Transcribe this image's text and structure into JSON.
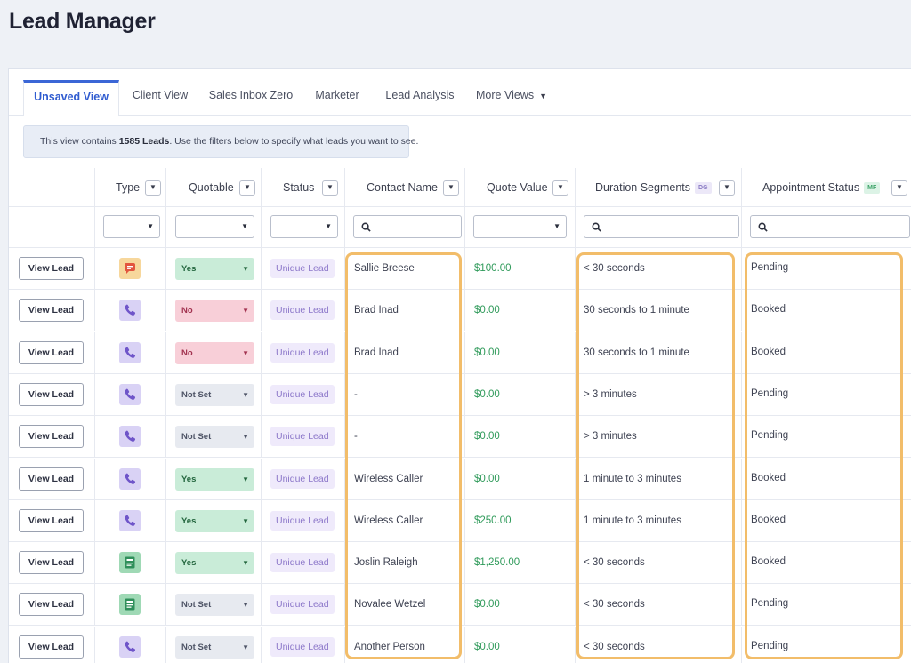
{
  "page_title": "Lead Manager",
  "tabs": [
    {
      "label": "Unsaved View",
      "active": true
    },
    {
      "label": "Client View",
      "active": false
    },
    {
      "label": "Sales Inbox Zero",
      "active": false
    },
    {
      "label": "Marketer",
      "active": false
    },
    {
      "label": "Lead Analysis",
      "active": false
    },
    {
      "label": "More Views",
      "active": false
    }
  ],
  "info": {
    "prefix": "This view contains ",
    "count": "1585 Leads",
    "suffix": ". Use the filters below to specify what leads you want to see."
  },
  "columns": {
    "type": "Type",
    "quotable": "Quotable",
    "status": "Status",
    "contact_name": "Contact Name",
    "quote_value": "Quote Value",
    "duration": "Duration Segments",
    "duration_tag": "DG",
    "appointment": "Appointment Status",
    "appointment_tag": "MF"
  },
  "view_lead_label": "View Lead",
  "rows": [
    {
      "type": "chat",
      "quotable": "Yes",
      "status": "Unique Lead",
      "contact": "Sallie Breese",
      "quote": "$100.00",
      "duration": "< 30 seconds",
      "appointment": "Pending"
    },
    {
      "type": "phone",
      "quotable": "No",
      "status": "Unique Lead",
      "contact": "Brad Inad",
      "quote": "$0.00",
      "duration": "30 seconds to 1 minute",
      "appointment": "Booked"
    },
    {
      "type": "phone",
      "quotable": "No",
      "status": "Unique Lead",
      "contact": "Brad Inad",
      "quote": "$0.00",
      "duration": "30 seconds to 1 minute",
      "appointment": "Booked"
    },
    {
      "type": "phone",
      "quotable": "Not Set",
      "status": "Unique Lead",
      "contact": "-",
      "quote": "$0.00",
      "duration": "> 3 minutes",
      "appointment": "Pending"
    },
    {
      "type": "phone",
      "quotable": "Not Set",
      "status": "Unique Lead",
      "contact": "-",
      "quote": "$0.00",
      "duration": "> 3 minutes",
      "appointment": "Pending"
    },
    {
      "type": "phone",
      "quotable": "Yes",
      "status": "Unique Lead",
      "contact": "Wireless Caller",
      "quote": "$0.00",
      "duration": "1 minute to 3 minutes",
      "appointment": "Booked"
    },
    {
      "type": "phone",
      "quotable": "Yes",
      "status": "Unique Lead",
      "contact": "Wireless Caller",
      "quote": "$250.00",
      "duration": "1 minute to 3 minutes",
      "appointment": "Booked"
    },
    {
      "type": "form",
      "quotable": "Yes",
      "status": "Unique Lead",
      "contact": "Joslin Raleigh",
      "quote": "$1,250.00",
      "duration": "< 30 seconds",
      "appointment": "Booked"
    },
    {
      "type": "form",
      "quotable": "Not Set",
      "status": "Unique Lead",
      "contact": "Novalee Wetzel",
      "quote": "$0.00",
      "duration": "< 30 seconds",
      "appointment": "Pending"
    },
    {
      "type": "phone",
      "quotable": "Not Set",
      "status": "Unique Lead",
      "contact": "Another Person",
      "quote": "$0.00",
      "duration": "< 30 seconds",
      "appointment": "Pending"
    }
  ]
}
